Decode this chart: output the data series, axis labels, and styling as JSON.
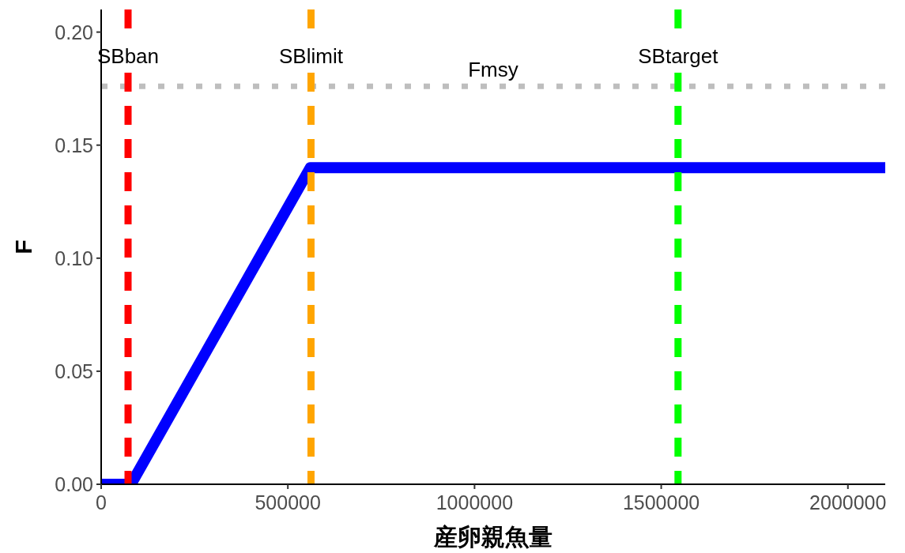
{
  "chart_data": {
    "type": "line",
    "xlabel": "産卵親魚量",
    "ylabel": "F",
    "x": [
      0,
      80000,
      560000,
      2100000
    ],
    "series": [
      {
        "color": "#0000ff",
        "values": [
          0,
          0,
          0.14,
          0.14
        ]
      }
    ],
    "xlim": [
      0,
      2100000
    ],
    "xticks": [
      0,
      500000,
      1000000,
      1500000,
      2000000
    ],
    "ylim": [
      0,
      0.21
    ],
    "yticks": [
      {
        "value": 0,
        "label": "0.00"
      },
      {
        "value": 0.05,
        "label": "0.05"
      },
      {
        "value": 0.1,
        "label": "0.10"
      },
      {
        "value": 0.15,
        "label": "0.15"
      },
      {
        "value": 0.2,
        "label": "0.20"
      }
    ],
    "grid": false,
    "line_style": "solid",
    "ref_lines": [
      {
        "axis": "x",
        "value": 72000,
        "label": "SBban",
        "color": "#ff0000",
        "line_style": "dashed"
      },
      {
        "axis": "x",
        "value": 562000,
        "label": "SBlimit",
        "color": "#ffa500",
        "line_style": "dashed"
      },
      {
        "axis": "x",
        "value": 1545000,
        "label": "SBtarget",
        "color": "#00ff00",
        "line_style": "dashed"
      },
      {
        "axis": "y",
        "value": 0.176,
        "label": "Fmsy",
        "color": "#bebebe",
        "line_style": "dotted"
      }
    ]
  }
}
